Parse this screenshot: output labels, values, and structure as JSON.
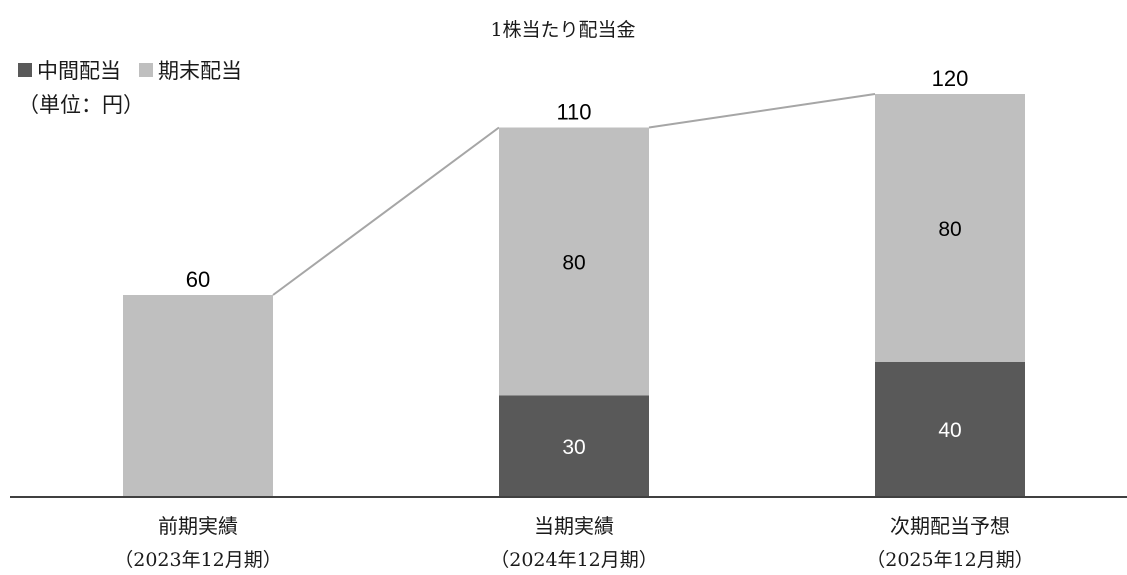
{
  "chart_data": {
    "type": "bar",
    "stacked": true,
    "title": "1株当たり配当金",
    "unit_label": "（単位：円）",
    "categories": [
      {
        "line1": "前期実績",
        "line2": "（2023年12月期）"
      },
      {
        "line1": "当期実績",
        "line2": "（2024年12月期）"
      },
      {
        "line1": "次期配当予想",
        "line2": "（2025年12月期）"
      }
    ],
    "series": [
      {
        "name": "中間配当",
        "color": "#595959",
        "label_color": "#ffffff",
        "values": [
          0,
          30,
          40
        ]
      },
      {
        "name": "期末配当",
        "color": "#bfbfbf",
        "label_color": "#000000",
        "values": [
          60,
          80,
          80
        ]
      }
    ],
    "totals": [
      60,
      110,
      120
    ],
    "show_segment_labels": [
      [
        false,
        true,
        true
      ],
      [
        false,
        true,
        true
      ]
    ],
    "connector_line_color": "#a6a6a6",
    "legend_position": "top-left",
    "grid": false,
    "ylim": [
      0,
      120
    ]
  }
}
